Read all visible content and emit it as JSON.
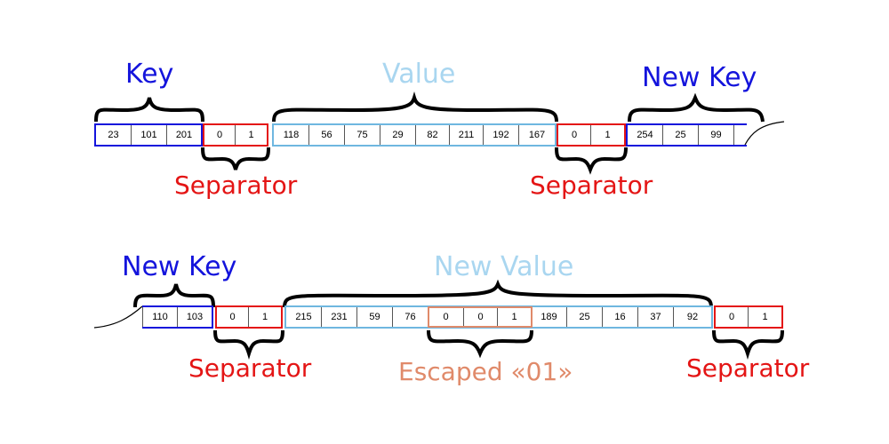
{
  "colors": {
    "key": "#1414dc",
    "value": "#6fb7e0",
    "value_label": "#a9d6f0",
    "separator": "#e41515",
    "escaped": "#e08a6a"
  },
  "row1": {
    "key_label": "Key",
    "key_cells": [
      "23",
      "101",
      "201"
    ],
    "sep1_cells": [
      "0",
      "1"
    ],
    "value_label": "Value",
    "value_cells": [
      "118",
      "56",
      "75",
      "29",
      "82",
      "211",
      "192",
      "167"
    ],
    "sep2_cells": [
      "0",
      "1"
    ],
    "newkey_label": "New Key",
    "newkey_cells": [
      "254",
      "25",
      "99"
    ],
    "sep1_label": "Separator",
    "sep2_label": "Separator"
  },
  "row2": {
    "newkey_label": "New Key",
    "newkey_cells": [
      "110",
      "103"
    ],
    "sep1_cells": [
      "0",
      "1"
    ],
    "newvalue_label": "New Value",
    "value_cells_a": [
      "215",
      "231",
      "59",
      "76"
    ],
    "escaped_cells": [
      "0",
      "0",
      "1"
    ],
    "value_cells_b": [
      "189",
      "25",
      "16",
      "37",
      "92"
    ],
    "sep2_cells": [
      "0",
      "1"
    ],
    "sep1_label": "Separator",
    "escaped_label": "Escaped «01»",
    "sep2_label": "Separator"
  }
}
